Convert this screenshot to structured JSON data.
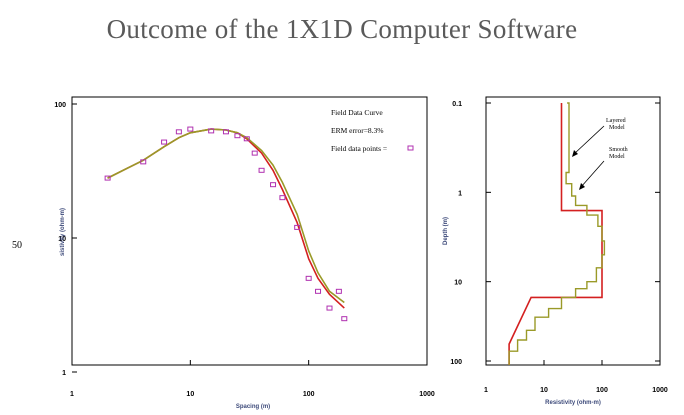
{
  "slide": {
    "title": "Outcome of the 1X1D Computer Software",
    "side_label": "50"
  },
  "colors": {
    "model_red": "#d42020",
    "model_olive": "#9a9a28",
    "field_points": "#b030b0",
    "axis_label": "#3d4a7a"
  },
  "chart_data": [
    {
      "type": "scatter",
      "title": "",
      "xlabel": "Spacing (m)",
      "ylabel": "sistivity (ohm-m)",
      "xscale": "log",
      "yscale": "log",
      "xlim": [
        1,
        1000
      ],
      "ylim": [
        1,
        100
      ],
      "x_ticks": [
        "1",
        "10",
        "100",
        "1000"
      ],
      "y_ticks": [
        "1",
        "10",
        "100"
      ],
      "annotations": [
        "Field Data Curve",
        "ERM error=8.3%",
        "Field data points = "
      ],
      "series": [
        {
          "name": "Field data points",
          "marker": "square",
          "x": [
            2,
            4,
            6,
            8,
            10,
            15,
            20,
            25,
            30,
            35,
            40,
            50,
            60,
            80,
            100,
            120,
            150,
            180,
            200
          ],
          "y": [
            28,
            37,
            52,
            62,
            65,
            63,
            62,
            58,
            55,
            43,
            32,
            25,
            20,
            12,
            5,
            4,
            3,
            4,
            2.5
          ]
        },
        {
          "x": [
            2,
            4,
            6,
            8,
            10,
            15,
            20,
            25,
            30,
            40,
            50,
            60,
            80,
            100,
            120,
            150,
            200
          ],
          "y": [
            28,
            38,
            48,
            56,
            61,
            65,
            64,
            61,
            55,
            43,
            32,
            23,
            13,
            7,
            5,
            3.8,
            3.0
          ]
        },
        {
          "x": [
            2,
            4,
            6,
            8,
            10,
            15,
            20,
            25,
            30,
            40,
            50,
            60,
            80,
            100,
            120,
            150,
            200
          ],
          "y": [
            28,
            38,
            48,
            56,
            61,
            65,
            64,
            61,
            56,
            45,
            35,
            26,
            15,
            8,
            5.5,
            4,
            3.3
          ]
        }
      ]
    },
    {
      "type": "line",
      "title": "",
      "xlabel": "Resistivity (ohm-m)",
      "ylabel": "Depth (m)",
      "xscale": "log",
      "yscale": "log",
      "y_inverted": true,
      "xlim": [
        1,
        1000
      ],
      "ylim": [
        0.1,
        100
      ],
      "x_ticks": [
        "1",
        "10",
        "100",
        "1000"
      ],
      "y_ticks": [
        "0.1",
        "1",
        "10",
        "100"
      ],
      "annotations": [
        "Layered Model",
        "Smooth Model"
      ],
      "series": [
        {
          "name": "Layered Model",
          "resistivity": [
            20,
            20,
            100,
            100,
            6,
            2.5,
            2.5
          ],
          "depth": [
            0.1,
            1.6,
            1.6,
            15,
            15,
            50,
            100
          ]
        },
        {
          "name": "Smooth Model",
          "resistivity": [
            25,
            27,
            24,
            30,
            35,
            55,
            85,
            100,
            110,
            100,
            80,
            55,
            35,
            20,
            12,
            7,
            5,
            3.5,
            2.5
          ],
          "depth": [
            0.1,
            0.6,
            0.8,
            1.1,
            1.4,
            1.8,
            2.4,
            3.5,
            5,
            7,
            10,
            12,
            15,
            20,
            25,
            35,
            45,
            60,
            100
          ]
        }
      ]
    }
  ]
}
